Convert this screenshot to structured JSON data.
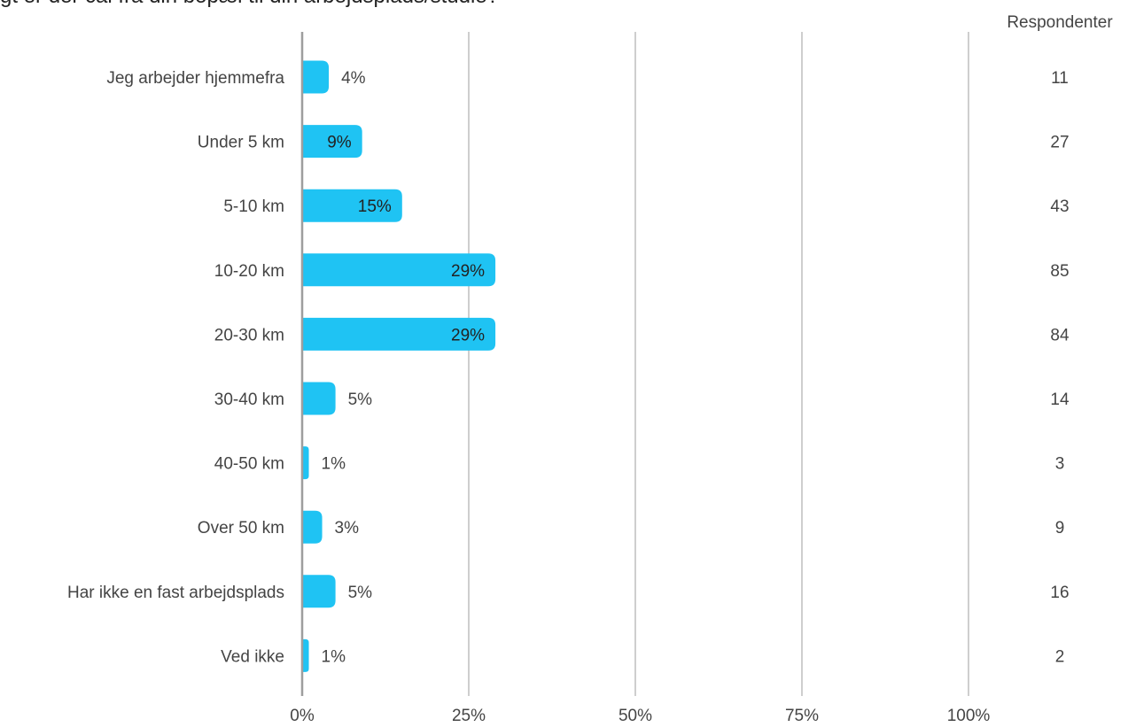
{
  "title": "gt er der cal fra din bopæl til din arbejdsplads/studie?",
  "colors": {
    "bar": "#1fc3f3",
    "grid": "#9e9e9e",
    "axis": "#9e9e9e"
  },
  "chart_data": {
    "type": "bar",
    "orientation": "horizontal",
    "title": "gt er der cal fra din bopæl til din arbejdsplads/studie?",
    "categories": [
      "Jeg arbejder hjemmefra",
      "Under 5 km",
      "5-10 km",
      "10-20 km",
      "20-30 km",
      "30-40 km",
      "40-50 km",
      "Over 50 km",
      "Har ikke en fast arbejdsplads",
      "Ved ikke"
    ],
    "values": [
      4,
      9,
      15,
      29,
      29,
      5,
      1,
      3,
      5,
      1
    ],
    "value_labels": [
      "4%",
      "9%",
      "15%",
      "29%",
      "29%",
      "5%",
      "1%",
      "3%",
      "5%",
      "1%"
    ],
    "respondents_header": "Respondenter",
    "respondents": [
      "11",
      "27",
      "43",
      "85",
      "84",
      "14",
      "3",
      "9",
      "16",
      "2"
    ],
    "xlim": [
      0,
      100
    ],
    "x_ticks": [
      0,
      25,
      50,
      75,
      100
    ],
    "x_tick_labels": [
      "0%",
      "25%",
      "50%",
      "75%",
      "100%"
    ],
    "grid": true,
    "legend": "none"
  }
}
